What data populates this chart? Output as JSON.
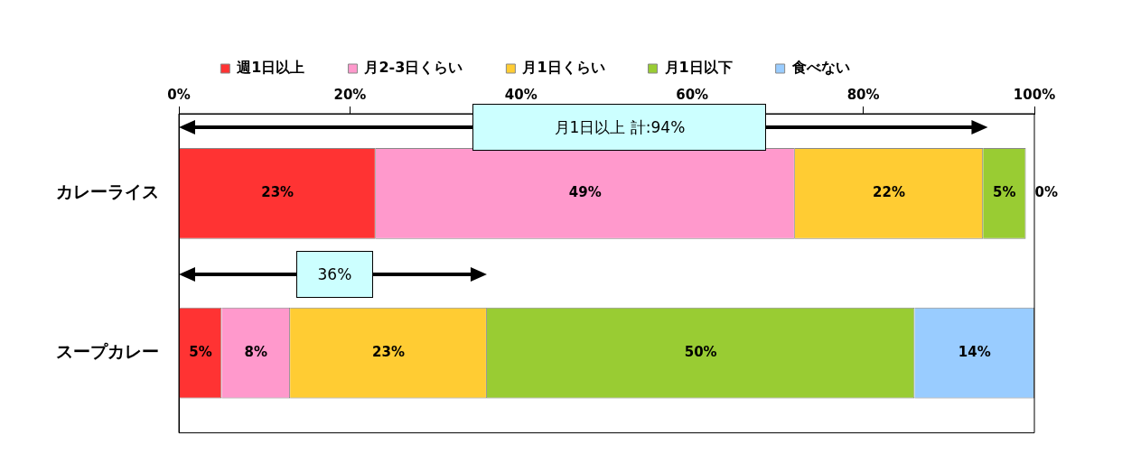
{
  "chart_data": {
    "type": "bar",
    "orientation": "horizontal",
    "stacked": true,
    "categories": [
      "カレーライス",
      "スープカレー"
    ],
    "series": [
      {
        "name": "週1日以上",
        "color": "#ff3333",
        "values": [
          23,
          5
        ],
        "value_labels": [
          "23%",
          "5%"
        ]
      },
      {
        "name": "月2-3日くらい",
        "color": "#ff99cc",
        "values": [
          49,
          8
        ],
        "value_labels": [
          "49%",
          "8%"
        ]
      },
      {
        "name": "月1日くらい",
        "color": "#ffcc33",
        "values": [
          22,
          23
        ],
        "value_labels": [
          "22%",
          "23%"
        ]
      },
      {
        "name": "月1日以下",
        "color": "#99cc33",
        "values": [
          5,
          50
        ],
        "value_labels": [
          "5%",
          "50%"
        ]
      },
      {
        "name": "食べない",
        "color": "#99ccff",
        "values": [
          0,
          14
        ],
        "value_labels": [
          "0%",
          "14%"
        ]
      }
    ],
    "xlim": [
      0,
      100
    ],
    "xticks": [
      {
        "value": 0,
        "label": "0%"
      },
      {
        "value": 20,
        "label": "20%"
      },
      {
        "value": 40,
        "label": "40%"
      },
      {
        "value": 60,
        "label": "60%"
      },
      {
        "value": 80,
        "label": "80%"
      },
      {
        "value": 100,
        "label": "100%"
      }
    ],
    "grid": false,
    "legend": "top",
    "annotations": [
      "月1日以上 計:94%",
      "36%"
    ]
  }
}
